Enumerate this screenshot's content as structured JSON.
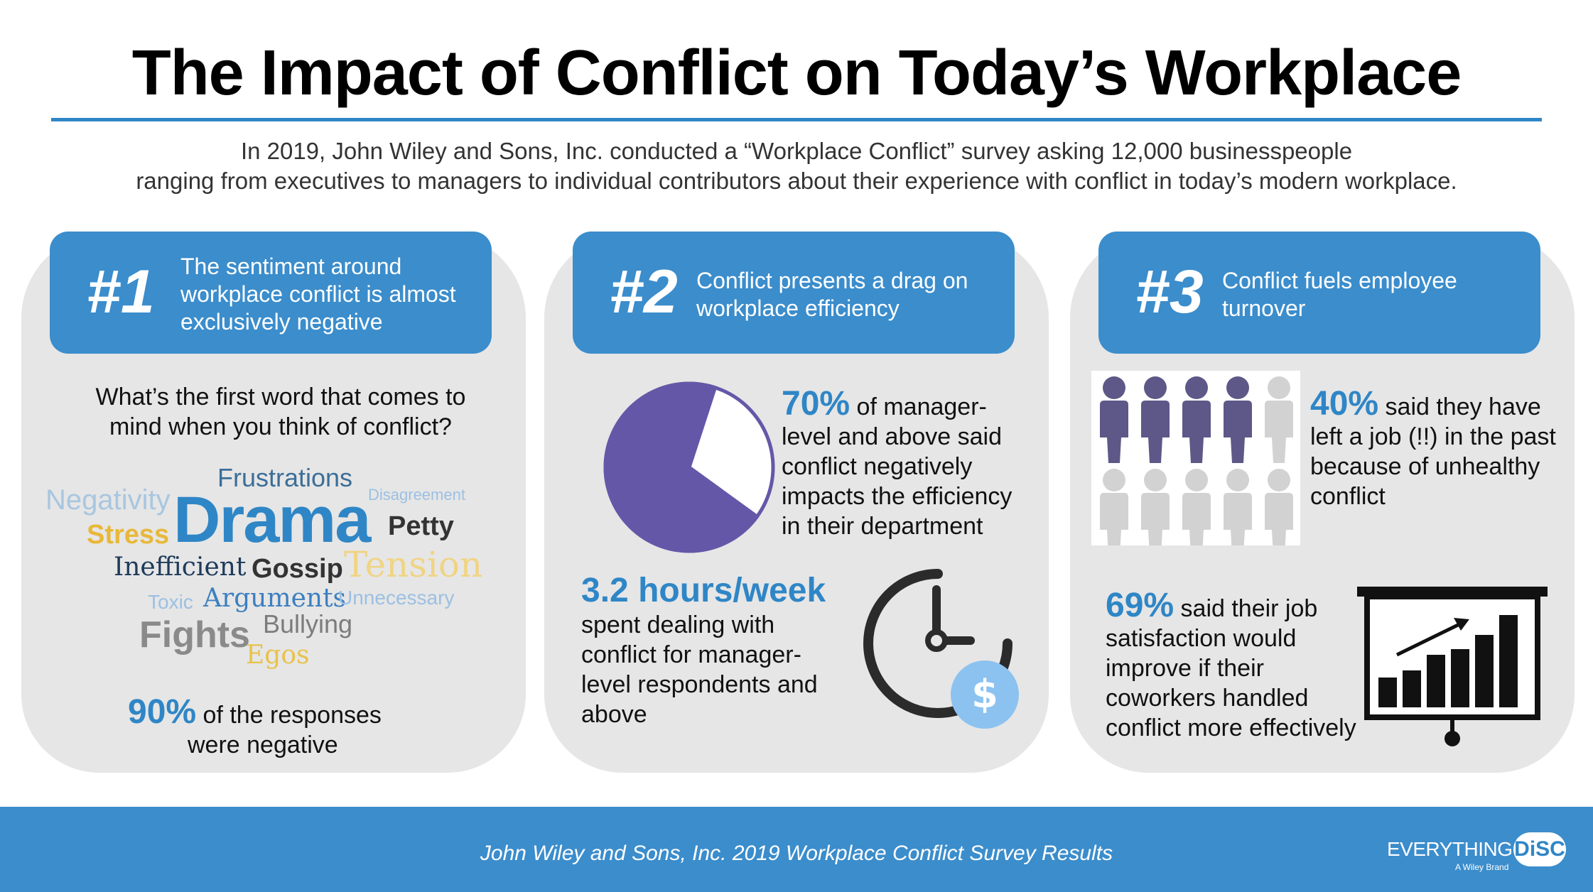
{
  "title": "The Impact of Conflict on Today’s Workplace",
  "intro": {
    "line1": "In 2019, John Wiley and Sons, Inc. conducted a “Workplace Conflict” survey asking 12,000 businesspeople",
    "line2": "ranging from executives to managers to individual contributors about their experience with conflict in today’s modern workplace."
  },
  "panel1": {
    "number": "#1",
    "heading": [
      "The sentiment around",
      "workplace conflict is almost",
      "exclusively negative"
    ],
    "question": [
      "What’s the first word that comes to",
      "mind when you think of conflict?"
    ],
    "words": [
      "Frustrations",
      "Negativity",
      "Disagreement",
      "Drama",
      "Stress",
      "Petty",
      "Inefficient",
      "Gossip",
      "Tension",
      "Toxic",
      "Arguments",
      "Unnecessary",
      "Fights",
      "Bullying",
      "Egos"
    ],
    "stat": "90%",
    "stat_text": [
      "of the responses",
      "were negative"
    ]
  },
  "panel2": {
    "number": "#2",
    "heading": [
      "Conflict presents a drag on",
      "workplace efficiency"
    ],
    "pie_percent": 70,
    "stat": "70%",
    "stat_text": [
      "of manager-",
      "level and above said",
      "conflict negatively",
      "impacts the efficiency",
      "in their department"
    ],
    "hours": "3.2 hours/week",
    "hours_text": [
      "spent dealing with",
      "conflict for manager-",
      "level respondents and",
      "above"
    ],
    "colors": {
      "pie": "#6557a8"
    }
  },
  "panel3": {
    "number": "#3",
    "heading": [
      "Conflict fuels employee",
      "turnover"
    ],
    "people_total": 10,
    "people_highlighted": 4,
    "stat1": "40%",
    "stat1_text": [
      "said they have",
      "left a job (!!) in the past",
      "because of unhealthy",
      "conflict"
    ],
    "stat2": "69%",
    "stat2_text": [
      "said their job",
      "satisfaction would",
      "improve if their",
      "coworkers handled",
      "conflict more effectively"
    ]
  },
  "footer": {
    "source": "John Wiley and Sons, Inc. 2019 Workplace Conflict Survey Results",
    "brand_a": "EVERYTHING",
    "brand_b": "DiSC",
    "brand_sub": "A Wiley Brand"
  }
}
